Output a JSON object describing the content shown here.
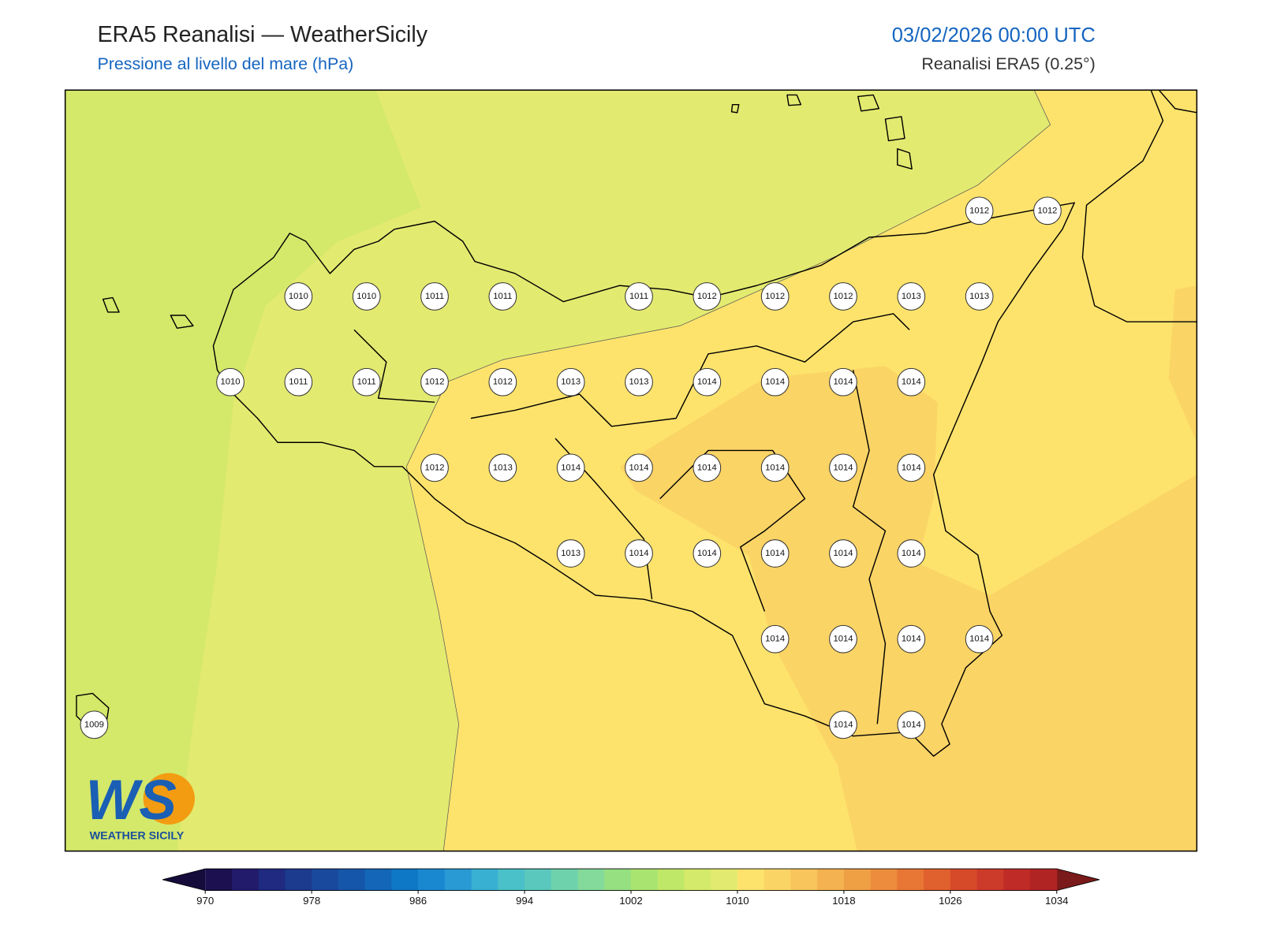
{
  "header": {
    "title": "ERA5 Reanalisi — WeatherSicily",
    "subtitle": "Pressione al livello del mare (hPa)",
    "datetime": "03/02/2026 00:00 UTC",
    "source": "Reanalisi ERA5 (0.25°)"
  },
  "stations": {
    "rows": [
      [
        null,
        null,
        null,
        null,
        null,
        null,
        null,
        null,
        null,
        null,
        null,
        null,
        null,
        1012,
        1012
      ],
      [
        null,
        null,
        null,
        1010,
        1010,
        1011,
        1011,
        null,
        1011,
        1012,
        1012,
        1012,
        1013,
        1013,
        null
      ],
      [
        null,
        null,
        1010,
        1011,
        1011,
        1012,
        1012,
        1013,
        1013,
        1014,
        1014,
        1014,
        1014,
        null,
        null
      ],
      [
        null,
        null,
        null,
        null,
        null,
        1012,
        1013,
        1014,
        1014,
        1014,
        1014,
        1014,
        1014,
        null,
        null
      ],
      [
        null,
        null,
        null,
        null,
        null,
        null,
        null,
        1013,
        1014,
        1014,
        1014,
        1014,
        1014,
        null,
        null
      ],
      [
        null,
        null,
        null,
        null,
        null,
        null,
        null,
        null,
        null,
        null,
        1014,
        1014,
        1014,
        1014,
        null
      ],
      [
        1009,
        null,
        null,
        null,
        null,
        null,
        null,
        null,
        null,
        null,
        null,
        1014,
        1014,
        null,
        null
      ]
    ]
  },
  "colorbar": {
    "range": [
      970,
      1034
    ],
    "ticks": [
      970,
      978,
      986,
      994,
      1002,
      1010,
      1018,
      1026,
      1034
    ],
    "colors": [
      "#1c1050",
      "#221a6b",
      "#1f2a80",
      "#1c3a8e",
      "#19499c",
      "#1656aa",
      "#1466b8",
      "#0f78c6",
      "#1a88d0",
      "#2a9ad4",
      "#38b0d2",
      "#4ac0c8",
      "#5ac8bc",
      "#6ed2ac",
      "#84da9a",
      "#96e082",
      "#aae470",
      "#c0e868",
      "#d4ea6a",
      "#e3ea70",
      "#fde36c",
      "#fbd466",
      "#f8c45c",
      "#f4b250",
      "#f0a044",
      "#ec8c3c",
      "#e87634",
      "#e0602e",
      "#d64a2a",
      "#cc3a2a",
      "#bf2c28",
      "#b02424"
    ],
    "under_color": "#160c3c",
    "over_color": "#7a1a1a"
  },
  "logo": {
    "text": "WS",
    "tagline": "WEATHER SICILY"
  }
}
